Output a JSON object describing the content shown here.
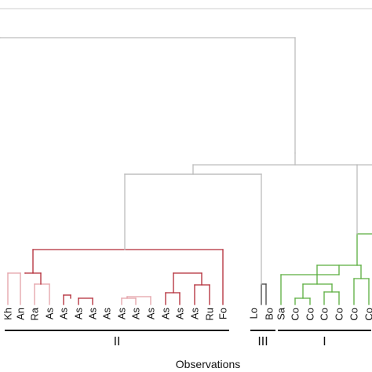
{
  "chart_data": {
    "type": "dendrogram",
    "title": "",
    "xlabel": "Observations",
    "ylabel": "",
    "colors": {
      "root": "#bdbdbd",
      "cluster_red": "#b22a36",
      "cluster_red_light": "#e3a1a8",
      "cluster_dark": "#444444",
      "cluster_green": "#5aae3f",
      "group_bar": "#111111"
    },
    "leaves": [
      "Kh",
      "An",
      "Ra",
      "As",
      "As",
      "As",
      "As",
      "As",
      "As",
      "As",
      "As",
      "As",
      "As",
      "As",
      "Ru",
      "Fo",
      "Lo",
      "Bo",
      "Sa",
      "Co",
      "Co",
      "Co",
      "Co",
      "Co",
      "Co"
    ],
    "groups": [
      {
        "label": "II",
        "first_leaf": 0,
        "last_leaf": 15
      },
      {
        "label": "III",
        "first_leaf": 16,
        "last_leaf": 17
      },
      {
        "label": "I",
        "first_leaf": 18,
        "last_leaf": 24
      }
    ]
  }
}
